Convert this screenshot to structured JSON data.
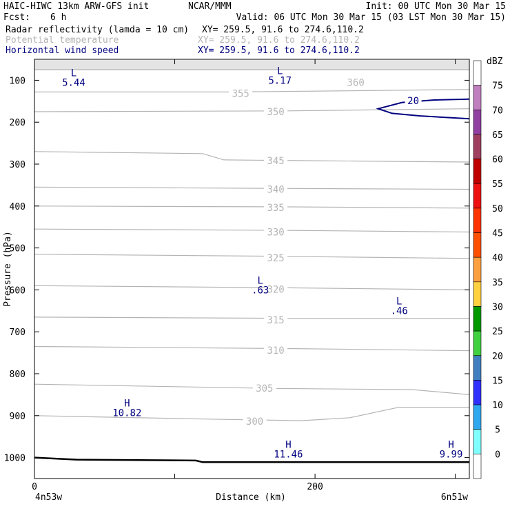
{
  "header": {
    "model": "HAIC-HIWC 13km ARW-GFS init",
    "org": "NCAR/MMM",
    "init": "Init: 00 UTC Mon 30 Mar 15",
    "fcst_label": "Fcst:",
    "fcst_value": "6 h",
    "valid": "Valid: 06 UTC Mon 30 Mar 15 (03 LST Mon 30 Mar 15)",
    "fields": [
      {
        "name": "Radar reflectivity (lamda = 10 cm)",
        "xy": "XY= 259.5, 91.6 to 274.6,110.2",
        "color": "#000000"
      },
      {
        "name": "Potential temperature",
        "xy": "XY= 259.5, 91.6 to 274.6,110.2",
        "color": "#b4b4b4"
      },
      {
        "name": "Horizontal wind speed",
        "xy": "XY= 259.5, 91.6 to 274.6,110.2",
        "color": "#000080"
      }
    ]
  },
  "chart_data": {
    "type": "contour-cross-section",
    "xlabel": "Distance (km)",
    "ylabel": "Pressure (hPa)",
    "x_ticks": [
      0,
      100,
      200,
      300
    ],
    "x_tick_labels": [
      "0",
      "",
      "200",
      ""
    ],
    "x_end_labels": {
      "left": "4n53w",
      "right": "6n51w"
    },
    "xlim": [
      0,
      310
    ],
    "ylim": [
      50,
      1050
    ],
    "y_ticks": [
      100,
      200,
      300,
      400,
      500,
      600,
      700,
      800,
      900,
      1000
    ],
    "theta_contours": [
      {
        "value": 360,
        "points": [
          [
            0,
            75
          ],
          [
            310,
            75
          ]
        ]
      },
      {
        "value": 355,
        "points": [
          [
            0,
            128
          ],
          [
            140,
            128
          ],
          [
            310,
            122
          ]
        ]
      },
      {
        "value": 350,
        "points": [
          [
            0,
            175
          ],
          [
            180,
            173
          ],
          [
            310,
            168
          ]
        ]
      },
      {
        "value": 345,
        "points": [
          [
            0,
            270
          ],
          [
            120,
            275
          ],
          [
            135,
            290
          ],
          [
            200,
            292
          ],
          [
            310,
            295
          ]
        ]
      },
      {
        "value": 340,
        "points": [
          [
            0,
            355
          ],
          [
            180,
            358
          ],
          [
            310,
            360
          ]
        ]
      },
      {
        "value": 335,
        "points": [
          [
            0,
            400
          ],
          [
            180,
            402
          ],
          [
            310,
            405
          ]
        ]
      },
      {
        "value": 330,
        "points": [
          [
            0,
            455
          ],
          [
            180,
            458
          ],
          [
            310,
            462
          ]
        ]
      },
      {
        "value": 325,
        "points": [
          [
            0,
            515
          ],
          [
            180,
            520
          ],
          [
            310,
            525
          ]
        ]
      },
      {
        "value": 320,
        "points": [
          [
            0,
            590
          ],
          [
            180,
            595
          ],
          [
            310,
            600
          ]
        ]
      },
      {
        "value": 315,
        "points": [
          [
            0,
            665
          ],
          [
            180,
            668
          ],
          [
            310,
            668
          ]
        ]
      },
      {
        "value": 310,
        "points": [
          [
            0,
            735
          ],
          [
            180,
            740
          ],
          [
            310,
            745
          ]
        ]
      },
      {
        "value": 305,
        "points": [
          [
            0,
            825
          ],
          [
            170,
            835
          ],
          [
            270,
            838
          ],
          [
            310,
            850
          ]
        ]
      },
      {
        "value": 300,
        "points": [
          [
            0,
            900
          ],
          [
            120,
            908
          ],
          [
            190,
            912
          ],
          [
            225,
            905
          ],
          [
            260,
            880
          ],
          [
            310,
            880
          ]
        ]
      }
    ],
    "theta_labels": [
      {
        "text": "360",
        "x": 229,
        "p": 113
      },
      {
        "text": "355",
        "x": 147,
        "p": 140
      },
      {
        "text": "350",
        "x": 172,
        "p": 183
      },
      {
        "text": "345",
        "x": 172,
        "p": 300
      },
      {
        "text": "340",
        "x": 172,
        "p": 368
      },
      {
        "text": "335",
        "x": 172,
        "p": 412
      },
      {
        "text": "330",
        "x": 172,
        "p": 470
      },
      {
        "text": "325",
        "x": 172,
        "p": 532
      },
      {
        "text": "320",
        "x": 172,
        "p": 607
      },
      {
        "text": "315",
        "x": 172,
        "p": 680
      },
      {
        "text": "310",
        "x": 172,
        "p": 752
      },
      {
        "text": "305",
        "x": 164,
        "p": 843
      },
      {
        "text": "300",
        "x": 157,
        "p": 922
      }
    ],
    "wind_contours": [
      {
        "value": 20,
        "points": [
          [
            310,
            145
          ],
          [
            285,
            147
          ],
          [
            262,
            153
          ],
          [
            245,
            168
          ],
          [
            255,
            179
          ],
          [
            275,
            185
          ],
          [
            310,
            192
          ]
        ]
      }
    ],
    "wind_labels": [
      {
        "text": "20",
        "x": 270,
        "p": 157
      }
    ],
    "extrema": [
      {
        "type": "L",
        "value": "5.44",
        "x": 28,
        "p": 90
      },
      {
        "type": "L",
        "value": "5.17",
        "x": 175,
        "p": 85
      },
      {
        "type": "L",
        "value": ".63",
        "x": 161,
        "p": 585
      },
      {
        "type": "L",
        "value": ".46",
        "x": 260,
        "p": 635
      },
      {
        "type": "H",
        "value": "10.82",
        "x": 66,
        "p": 878
      },
      {
        "type": "H",
        "value": "11.46",
        "x": 181,
        "p": 977
      },
      {
        "type": "H",
        "value": "9.99",
        "x": 297,
        "p": 977
      }
    ],
    "terrain": [
      [
        0,
        1000
      ],
      [
        30,
        1005
      ],
      [
        115,
        1007
      ],
      [
        120,
        1011
      ],
      [
        310,
        1011
      ]
    ],
    "colorbar": {
      "title": "dBZ",
      "levels": [
        {
          "label": "75",
          "color": "#ffffff"
        },
        {
          "label": "70",
          "color": "#c080c0"
        },
        {
          "label": "65",
          "color": "#9040a0"
        },
        {
          "label": "60",
          "color": "#a04060"
        },
        {
          "label": "55",
          "color": "#c00000"
        },
        {
          "label": "50",
          "color": "#ee1111"
        },
        {
          "label": "45",
          "color": "#ff3300"
        },
        {
          "label": "40",
          "color": "#ff5000"
        },
        {
          "label": "35",
          "color": "#ffa040"
        },
        {
          "label": "30",
          "color": "#ffd040"
        },
        {
          "label": "25",
          "color": "#009900"
        },
        {
          "label": "20",
          "color": "#40d040"
        },
        {
          "label": "15",
          "color": "#4080c0"
        },
        {
          "label": "10",
          "color": "#3030ff"
        },
        {
          "label": "5",
          "color": "#30a8f0"
        },
        {
          "label": "0",
          "color": "#80ffff"
        },
        {
          "label": "",
          "color": "#ffffff"
        }
      ]
    },
    "colors": {
      "theta": "#b4b4b4",
      "wind": "#000080",
      "terrain": "#000000",
      "topfill": "#c8c8c8"
    }
  }
}
